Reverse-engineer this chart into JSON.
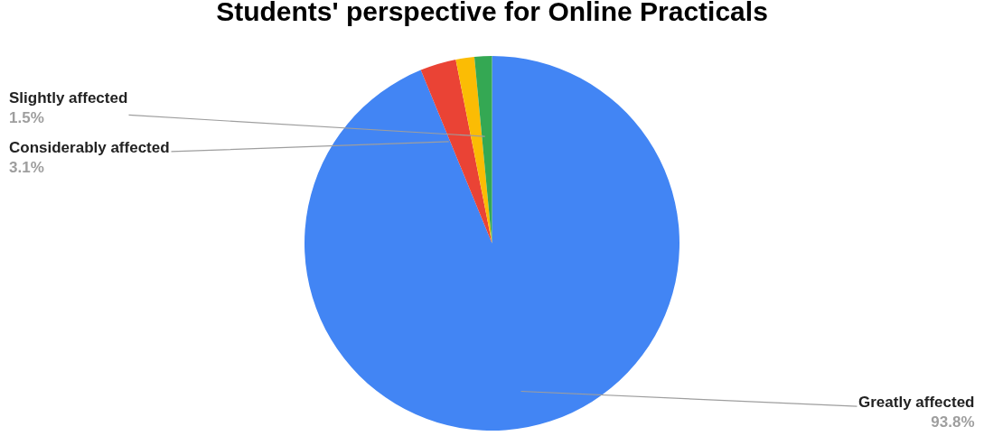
{
  "chart_data": {
    "type": "pie",
    "title": "Students' perspective for Online Practicals",
    "categories": [
      "Greatly affected",
      "Considerably affected",
      null,
      "Slightly affected"
    ],
    "values": [
      93.8,
      3.1,
      1.6,
      1.5
    ],
    "value_labels": [
      "93.8%",
      "3.1%",
      null,
      "1.5%"
    ],
    "colors": [
      "#4285f4",
      "#ea4335",
      "#fbbc04",
      "#34a853"
    ],
    "legend": false
  }
}
